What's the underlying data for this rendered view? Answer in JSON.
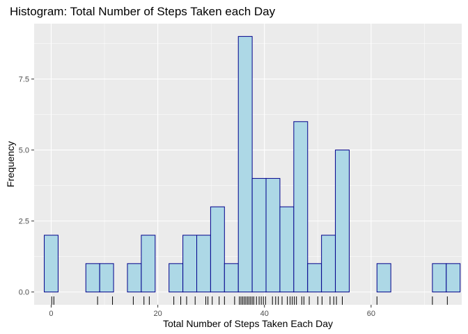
{
  "chart_data": {
    "type": "bar",
    "title": "Histogram: Total Number of Steps Taken each Day",
    "xlabel": "Total Number of Steps Taken Each Day",
    "ylabel": "Frequency",
    "xlim": [
      -3.2,
      77
    ],
    "ylim": [
      -0.45,
      9.45
    ],
    "x_ticks": [
      0,
      20,
      40,
      60
    ],
    "y_ticks": [
      0.0,
      2.5,
      5.0,
      7.5
    ],
    "y_tick_labels": [
      "0.0",
      "2.5",
      "5.0",
      "7.5"
    ],
    "x_tick_labels": [
      "0",
      "20",
      "40",
      "60"
    ],
    "grid": true,
    "bin_width": 2.6,
    "bins": [
      {
        "x0": -1.3,
        "x1": 1.3,
        "count": 2
      },
      {
        "x0": 1.3,
        "x1": 3.9,
        "count": 0
      },
      {
        "x0": 3.9,
        "x1": 6.5,
        "count": 0
      },
      {
        "x0": 6.5,
        "x1": 9.1,
        "count": 1
      },
      {
        "x0": 9.1,
        "x1": 11.7,
        "count": 1
      },
      {
        "x0": 11.7,
        "x1": 14.3,
        "count": 0
      },
      {
        "x0": 14.3,
        "x1": 16.9,
        "count": 1
      },
      {
        "x0": 16.9,
        "x1": 19.5,
        "count": 2
      },
      {
        "x0": 19.5,
        "x1": 22.1,
        "count": 0
      },
      {
        "x0": 22.1,
        "x1": 24.7,
        "count": 1
      },
      {
        "x0": 24.7,
        "x1": 27.3,
        "count": 2
      },
      {
        "x0": 27.3,
        "x1": 29.9,
        "count": 2
      },
      {
        "x0": 29.9,
        "x1": 32.5,
        "count": 3
      },
      {
        "x0": 32.5,
        "x1": 35.1,
        "count": 1
      },
      {
        "x0": 35.1,
        "x1": 37.7,
        "count": 9
      },
      {
        "x0": 37.7,
        "x1": 40.3,
        "count": 4
      },
      {
        "x0": 40.3,
        "x1": 42.9,
        "count": 4
      },
      {
        "x0": 42.9,
        "x1": 45.5,
        "count": 3
      },
      {
        "x0": 45.5,
        "x1": 48.1,
        "count": 6
      },
      {
        "x0": 48.1,
        "x1": 50.7,
        "count": 1
      },
      {
        "x0": 50.7,
        "x1": 53.3,
        "count": 2
      },
      {
        "x0": 53.3,
        "x1": 55.9,
        "count": 5
      },
      {
        "x0": 55.9,
        "x1": 58.5,
        "count": 0
      },
      {
        "x0": 58.5,
        "x1": 61.1,
        "count": 0
      },
      {
        "x0": 61.1,
        "x1": 63.7,
        "count": 1
      },
      {
        "x0": 63.7,
        "x1": 66.3,
        "count": 0
      },
      {
        "x0": 66.3,
        "x1": 68.9,
        "count": 0
      },
      {
        "x0": 68.9,
        "x1": 71.5,
        "count": 0
      },
      {
        "x0": 71.5,
        "x1": 74.1,
        "count": 1
      },
      {
        "x0": 74.1,
        "x1": 76.7,
        "count": 1
      }
    ],
    "rug": [
      0.1,
      0.5,
      8.7,
      11.5,
      15.4,
      17.4,
      18.4,
      23.0,
      24.3,
      25.4,
      27.0,
      29.0,
      29.4,
      30.2,
      31.5,
      32.5,
      34.4,
      35.3,
      35.6,
      35.9,
      36.2,
      36.5,
      36.8,
      37.1,
      37.4,
      37.7,
      38.0,
      38.5,
      39.0,
      39.4,
      39.8,
      40.2,
      41.5,
      42.1,
      42.6,
      43.3,
      44.3,
      44.8,
      45.2,
      45.6,
      46.0,
      47.0,
      47.4,
      48.4,
      50.0,
      50.8,
      52.3,
      53.0,
      53.5,
      54.6,
      61.1,
      71.5,
      74.3
    ],
    "colors": {
      "panel": "#ebebeb",
      "grid_major": "#ffffff",
      "bar_fill": "#add8e6",
      "bar_stroke": "#00008b",
      "rug": "#000000"
    }
  }
}
